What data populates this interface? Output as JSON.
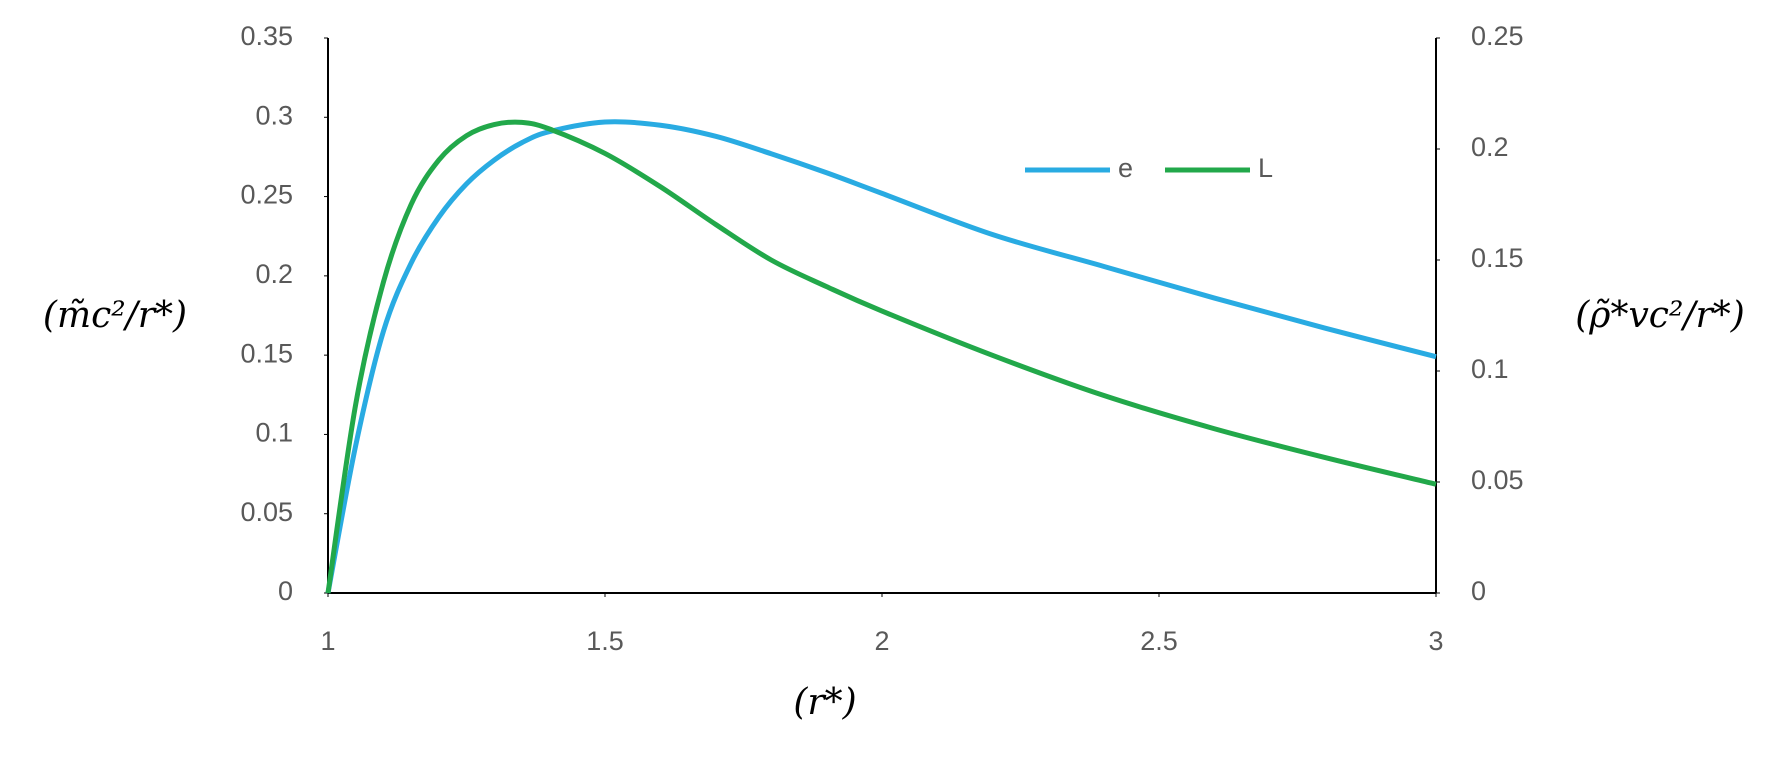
{
  "chart_data": {
    "type": "line",
    "x_label": "(r*)",
    "y_label": "(m̃c²/r*)",
    "y2_label": "(ρ̃*vc²/r*)",
    "x": [
      1,
      1.05,
      1.1,
      1.15,
      1.2,
      1.25,
      1.3,
      1.35,
      1.4,
      1.5,
      1.6,
      1.7,
      1.8,
      1.9,
      2,
      2.2,
      2.4,
      2.6,
      2.8,
      3
    ],
    "series": [
      {
        "name": "e",
        "color": "#29abe2",
        "axis": "y",
        "values": [
          0,
          0.093,
          0.165,
          0.208,
          0.237,
          0.258,
          0.273,
          0.284,
          0.291,
          0.297,
          0.295,
          0.288,
          0.277,
          0.265,
          0.252,
          0.226,
          0.206,
          0.186,
          0.167,
          0.149
        ]
      },
      {
        "name": "L",
        "color": "#22a84a",
        "axis": "y2",
        "values": [
          0,
          0.085,
          0.14,
          0.175,
          0.195,
          0.206,
          0.211,
          0.212,
          0.209,
          0.198,
          0.183,
          0.166,
          0.15,
          0.138,
          0.127,
          0.107,
          0.089,
          0.074,
          0.061,
          0.049
        ]
      }
    ],
    "xlim": [
      1,
      3
    ],
    "xticks": [
      1,
      1.5,
      2,
      2.5,
      3
    ],
    "ylim": [
      0,
      0.35
    ],
    "yticks": [
      0,
      0.05,
      0.1,
      0.15,
      0.2,
      0.25,
      0.3,
      0.35
    ],
    "y2lim": [
      0,
      0.25
    ],
    "y2ticks": [
      0,
      0.05,
      0.1,
      0.15,
      0.2,
      0.25
    ],
    "grid": false,
    "legend": "upper-right"
  }
}
